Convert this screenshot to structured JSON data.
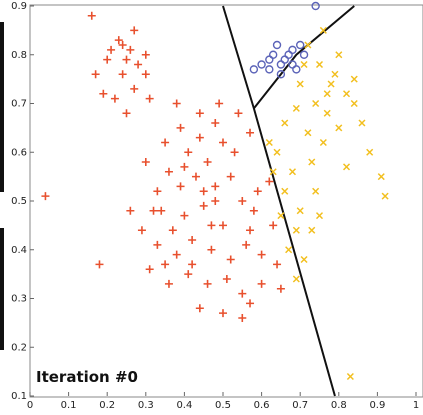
{
  "chart_data": {
    "type": "scatter",
    "title": "Iteration #0",
    "xlabel": "",
    "ylabel": "",
    "xlim": [
      0.0,
      1.0
    ],
    "ylim": [
      0.1,
      0.9
    ],
    "xticks": [
      "0",
      "0.1",
      "0.2",
      "0.3",
      "0.4",
      "0.5",
      "0.6",
      "0.7",
      "0.8",
      "0.9",
      "1"
    ],
    "yticks": [
      "0.1",
      "0.2",
      "0.3",
      "0.4",
      "0.5",
      "0.6",
      "0.7",
      "0.8",
      "0.9"
    ],
    "grid": false,
    "colors": {
      "cluster_red": "#e8502e",
      "cluster_yellow": "#f2bf1e",
      "cluster_blue": "#5b63b8",
      "boundary": "#111111"
    },
    "series": [
      {
        "marker": "plus",
        "color": "#e8502e",
        "points": [
          [
            0.16,
            0.88
          ],
          [
            0.04,
            0.51
          ],
          [
            0.18,
            0.37
          ],
          [
            0.26,
            0.81
          ],
          [
            0.23,
            0.83
          ],
          [
            0.2,
            0.79
          ],
          [
            0.27,
            0.85
          ],
          [
            0.3,
            0.76
          ],
          [
            0.24,
            0.76
          ],
          [
            0.19,
            0.72
          ],
          [
            0.27,
            0.73
          ],
          [
            0.22,
            0.71
          ],
          [
            0.25,
            0.68
          ],
          [
            0.3,
            0.8
          ],
          [
            0.21,
            0.81
          ],
          [
            0.28,
            0.78
          ],
          [
            0.17,
            0.76
          ],
          [
            0.25,
            0.79
          ],
          [
            0.31,
            0.71
          ],
          [
            0.24,
            0.82
          ],
          [
            0.38,
            0.7
          ],
          [
            0.44,
            0.68
          ],
          [
            0.48,
            0.66
          ],
          [
            0.35,
            0.62
          ],
          [
            0.41,
            0.6
          ],
          [
            0.46,
            0.58
          ],
          [
            0.5,
            0.62
          ],
          [
            0.53,
            0.6
          ],
          [
            0.57,
            0.64
          ],
          [
            0.43,
            0.55
          ],
          [
            0.39,
            0.53
          ],
          [
            0.48,
            0.53
          ],
          [
            0.52,
            0.55
          ],
          [
            0.55,
            0.5
          ],
          [
            0.34,
            0.48
          ],
          [
            0.4,
            0.47
          ],
          [
            0.45,
            0.49
          ],
          [
            0.5,
            0.45
          ],
          [
            0.59,
            0.52
          ],
          [
            0.57,
            0.44
          ],
          [
            0.29,
            0.44
          ],
          [
            0.33,
            0.41
          ],
          [
            0.38,
            0.39
          ],
          [
            0.42,
            0.42
          ],
          [
            0.47,
            0.4
          ],
          [
            0.52,
            0.38
          ],
          [
            0.56,
            0.41
          ],
          [
            0.6,
            0.39
          ],
          [
            0.63,
            0.45
          ],
          [
            0.31,
            0.36
          ],
          [
            0.36,
            0.33
          ],
          [
            0.41,
            0.35
          ],
          [
            0.46,
            0.33
          ],
          [
            0.51,
            0.34
          ],
          [
            0.55,
            0.31
          ],
          [
            0.6,
            0.33
          ],
          [
            0.64,
            0.37
          ],
          [
            0.44,
            0.28
          ],
          [
            0.5,
            0.27
          ],
          [
            0.55,
            0.26
          ],
          [
            0.4,
            0.57
          ],
          [
            0.36,
            0.56
          ],
          [
            0.44,
            0.63
          ],
          [
            0.49,
            0.7
          ],
          [
            0.54,
            0.68
          ],
          [
            0.47,
            0.45
          ],
          [
            0.37,
            0.44
          ],
          [
            0.42,
            0.37
          ],
          [
            0.58,
            0.48
          ],
          [
            0.62,
            0.54
          ],
          [
            0.33,
            0.52
          ],
          [
            0.45,
            0.52
          ],
          [
            0.35,
            0.37
          ],
          [
            0.65,
            0.32
          ],
          [
            0.57,
            0.29
          ],
          [
            0.32,
            0.48
          ],
          [
            0.39,
            0.65
          ],
          [
            0.26,
            0.48
          ],
          [
            0.3,
            0.58
          ],
          [
            0.48,
            0.5
          ]
        ]
      },
      {
        "marker": "x",
        "color": "#f2bf1e",
        "points": [
          [
            0.72,
            0.82
          ],
          [
            0.75,
            0.78
          ],
          [
            0.78,
            0.74
          ],
          [
            0.8,
            0.8
          ],
          [
            0.7,
            0.74
          ],
          [
            0.74,
            0.7
          ],
          [
            0.77,
            0.68
          ],
          [
            0.82,
            0.72
          ],
          [
            0.69,
            0.69
          ],
          [
            0.66,
            0.66
          ],
          [
            0.72,
            0.64
          ],
          [
            0.76,
            0.62
          ],
          [
            0.8,
            0.65
          ],
          [
            0.84,
            0.7
          ],
          [
            0.64,
            0.6
          ],
          [
            0.68,
            0.56
          ],
          [
            0.73,
            0.58
          ],
          [
            0.79,
            0.76
          ],
          [
            0.86,
            0.66
          ],
          [
            0.71,
            0.78
          ],
          [
            0.66,
            0.52
          ],
          [
            0.7,
            0.48
          ],
          [
            0.74,
            0.52
          ],
          [
            0.69,
            0.44
          ],
          [
            0.73,
            0.44
          ],
          [
            0.71,
            0.38
          ],
          [
            0.67,
            0.4
          ],
          [
            0.75,
            0.47
          ],
          [
            0.82,
            0.57
          ],
          [
            0.84,
            0.75
          ],
          [
            0.88,
            0.6
          ],
          [
            0.77,
            0.72
          ],
          [
            0.63,
            0.56
          ],
          [
            0.65,
            0.47
          ],
          [
            0.69,
            0.34
          ],
          [
            0.92,
            0.51
          ],
          [
            0.91,
            0.55
          ],
          [
            0.83,
            0.14
          ],
          [
            0.76,
            0.85
          ],
          [
            0.62,
            0.62
          ]
        ]
      },
      {
        "marker": "circle",
        "color": "#5b63b8",
        "points": [
          [
            0.58,
            0.77
          ],
          [
            0.6,
            0.78
          ],
          [
            0.62,
            0.79
          ],
          [
            0.63,
            0.8
          ],
          [
            0.64,
            0.82
          ],
          [
            0.65,
            0.78
          ],
          [
            0.66,
            0.79
          ],
          [
            0.67,
            0.8
          ],
          [
            0.68,
            0.81
          ],
          [
            0.7,
            0.82
          ],
          [
            0.71,
            0.8
          ],
          [
            0.69,
            0.77
          ],
          [
            0.74,
            0.9
          ],
          [
            0.65,
            0.76
          ],
          [
            0.68,
            0.78
          ],
          [
            0.62,
            0.77
          ]
        ]
      }
    ],
    "boundaries": [
      [
        [
          0.58,
          0.69
        ],
        [
          0.69,
          0.8
        ],
        [
          0.84,
          0.9
        ]
      ],
      [
        [
          0.5,
          0.9
        ],
        [
          0.58,
          0.69
        ],
        [
          0.79,
          0.1
        ]
      ]
    ]
  }
}
